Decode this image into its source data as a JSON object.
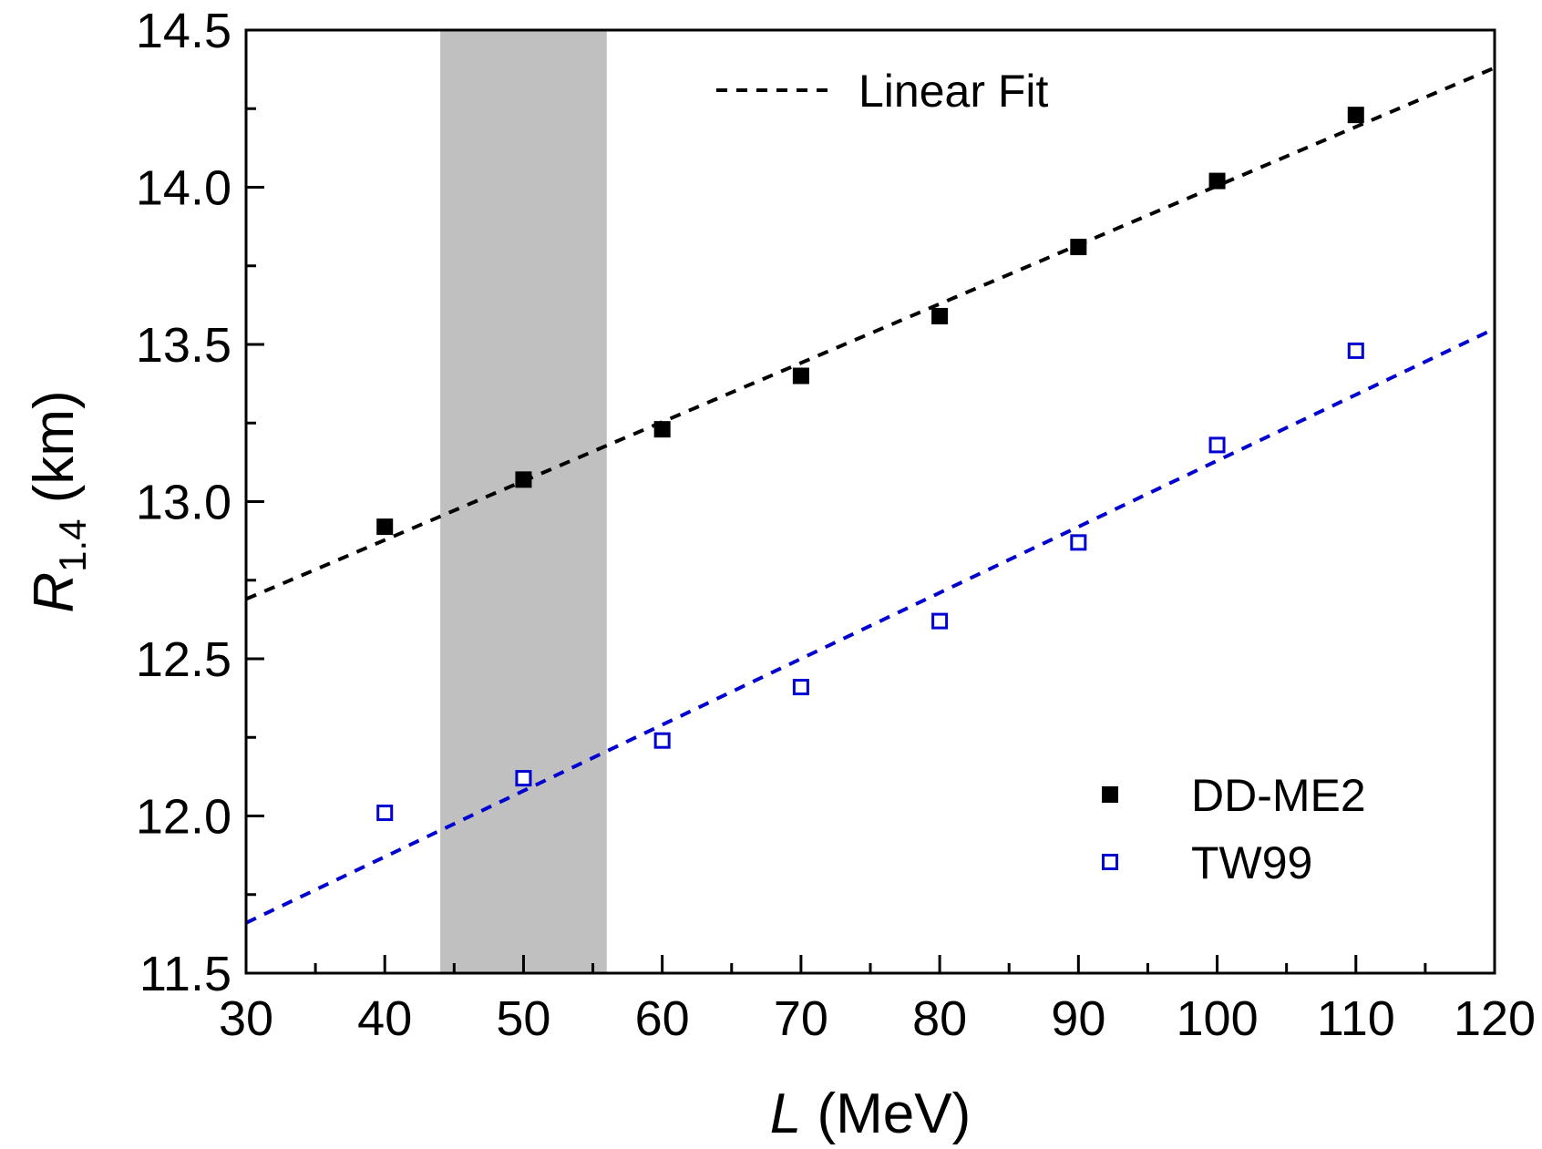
{
  "chart_data": {
    "type": "scatter",
    "xlabel": {
      "var": "L",
      "unit": " (MeV)"
    },
    "ylabel": {
      "var": "R",
      "sub": "1.4",
      "unit": " (km)"
    },
    "xlim": [
      30,
      120
    ],
    "ylim": [
      11.5,
      14.5
    ],
    "xticks": [
      30,
      40,
      50,
      60,
      70,
      80,
      90,
      100,
      110,
      120
    ],
    "yticks": [
      11.5,
      12.0,
      12.5,
      13.0,
      13.5,
      14.0,
      14.5
    ],
    "xtick_labels": [
      "30",
      "40",
      "50",
      "60",
      "70",
      "80",
      "90",
      "100",
      "110",
      "120"
    ],
    "ytick_labels": [
      "11.5",
      "12.0",
      "12.5",
      "13.0",
      "13.5",
      "14.0",
      "14.5"
    ],
    "shaded_band": {
      "x": [
        44,
        56
      ],
      "color": "#c0c0c0"
    },
    "grid": false,
    "series": [
      {
        "name": "DD-ME2",
        "marker": "filled-square",
        "color": "#000000",
        "x": [
          40,
          50,
          60,
          70,
          80,
          90,
          100,
          110
        ],
        "y": [
          12.92,
          13.07,
          13.23,
          13.4,
          13.59,
          13.81,
          14.02,
          14.23
        ],
        "fit": {
          "type": "linear",
          "x": [
            30,
            120
          ],
          "y": [
            12.69,
            14.38
          ]
        }
      },
      {
        "name": "TW99",
        "marker": "open-square",
        "color": "#0000d0",
        "x": [
          40,
          50,
          60,
          70,
          80,
          90,
          100,
          110
        ],
        "y": [
          12.01,
          12.12,
          12.24,
          12.41,
          12.62,
          12.87,
          13.18,
          13.48
        ],
        "fit": {
          "type": "linear",
          "x": [
            30,
            120
          ],
          "y": [
            11.66,
            13.55
          ]
        }
      }
    ],
    "legend": {
      "fit_label": "Linear Fit",
      "fit_legend_placement": "top-center",
      "series_legend_placement": "bottom-right",
      "entries": [
        "DD-ME2",
        "TW99"
      ]
    }
  }
}
